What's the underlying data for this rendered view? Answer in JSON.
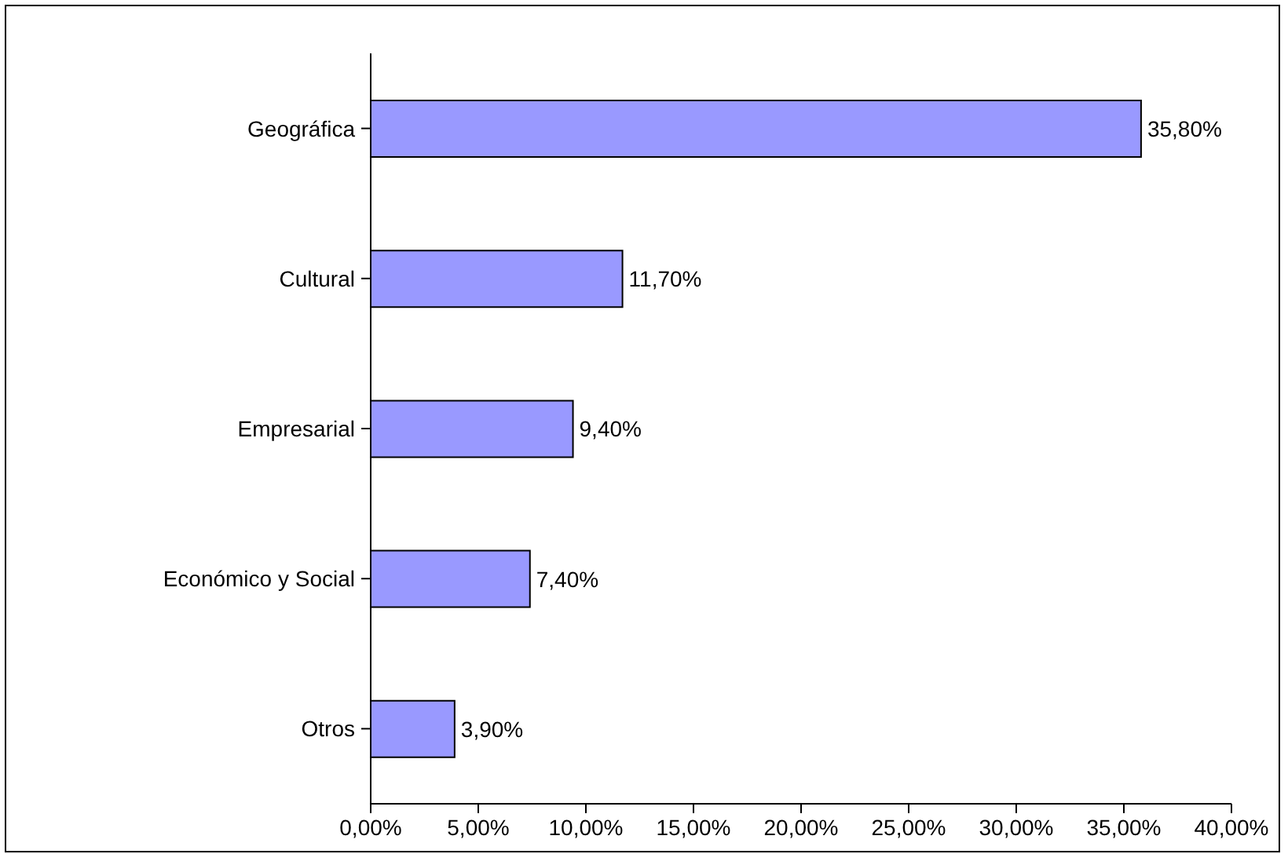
{
  "chart_data": {
    "type": "bar",
    "orientation": "horizontal",
    "categories": [
      "Geográfica",
      "Cultural",
      "Empresarial",
      "Económico y Social",
      "Otros"
    ],
    "values": [
      35.8,
      11.7,
      9.4,
      7.4,
      3.9
    ],
    "value_labels": [
      "35,80%",
      "11,70%",
      "9,40%",
      "7,40%",
      "3,90%"
    ],
    "color": "#9999ff",
    "xlim": [
      0,
      40
    ],
    "xticks": [
      {
        "value": 0,
        "label": "0,00%"
      },
      {
        "value": 5,
        "label": "5,00%"
      },
      {
        "value": 10,
        "label": "10,00%"
      },
      {
        "value": 15,
        "label": "15,00%"
      },
      {
        "value": 20,
        "label": "20,00%"
      },
      {
        "value": 25,
        "label": "25,00%"
      },
      {
        "value": 30,
        "label": "30,00%"
      },
      {
        "value": 35,
        "label": "35,00%"
      },
      {
        "value": 40,
        "label": "40,00%"
      }
    ],
    "grid": false,
    "legend": false
  }
}
